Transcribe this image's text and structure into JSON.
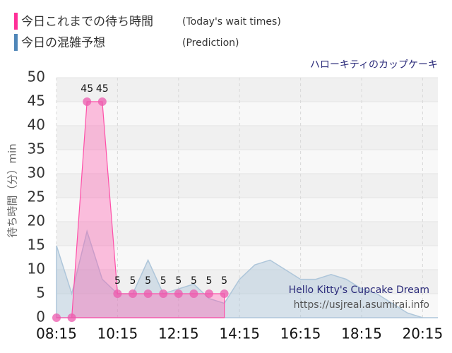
{
  "chart_data": {
    "type": "line",
    "title": "ハローキティのカップケーキ",
    "legend_labels": [
      {
        "name": "今日これまでの待ち時間",
        "note": "(Today's wait times)"
      },
      {
        "name": "今日の混雑予想",
        "note": "(Prediction)"
      }
    ],
    "ylabel": "待ち時間（分）min",
    "watermark": [
      "Hello Kitty's Cupcake Dream",
      "https://usjreal.asumirai.info"
    ],
    "xlim": [
      "08:15",
      "20:45"
    ],
    "xticks": [
      "08:15",
      "10:15",
      "12:15",
      "14:15",
      "16:15",
      "18:15",
      "20:15"
    ],
    "ylim": [
      0,
      50
    ],
    "yticks": [
      0,
      5,
      10,
      15,
      20,
      25,
      30,
      35,
      40,
      45,
      50
    ],
    "grid": true,
    "series": [
      {
        "name": "今日の混雑予想",
        "color": "#aec6da",
        "style": "area",
        "x": [
          "08:15",
          "08:45",
          "09:15",
          "09:45",
          "10:15",
          "10:45",
          "11:15",
          "11:45",
          "12:15",
          "12:45",
          "13:15",
          "13:45",
          "14:15",
          "14:45",
          "15:15",
          "15:45",
          "16:15",
          "16:45",
          "17:15",
          "17:45",
          "18:15",
          "18:45",
          "19:15",
          "19:45",
          "20:15",
          "20:45"
        ],
        "values": [
          15,
          5,
          18,
          8,
          5,
          5,
          12,
          5,
          6,
          7,
          4,
          3,
          8,
          11,
          12,
          10,
          8,
          8,
          9,
          8,
          6,
          5,
          3,
          1,
          0,
          0
        ]
      },
      {
        "name": "今日これまでの待ち時間",
        "color": "#ff4fa8",
        "style": "markers",
        "x": [
          "08:15",
          "08:45",
          "09:15",
          "09:45",
          "10:15",
          "10:45",
          "11:15",
          "11:45",
          "12:15",
          "12:45",
          "13:15",
          "13:45"
        ],
        "values": [
          0,
          0,
          45,
          45,
          5,
          5,
          5,
          5,
          5,
          5,
          5,
          5
        ],
        "value_labels": [
          null,
          null,
          "45",
          "45",
          "5",
          "5",
          "5",
          "5",
          "5",
          "5",
          "5",
          "5"
        ]
      }
    ]
  }
}
